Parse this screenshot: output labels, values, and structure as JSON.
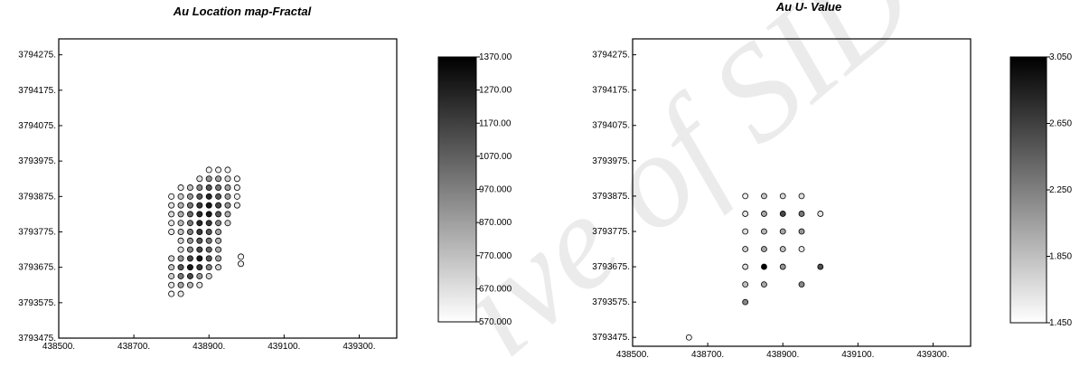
{
  "watermark_text": "ive of SID",
  "chart_data": [
    {
      "type": "scatter",
      "title": "Au Location map-Fractal",
      "xlabel": "",
      "ylabel": "",
      "xlim": [
        438500,
        439400
      ],
      "ylim": [
        3793475,
        3794320
      ],
      "x_ticks": [
        "438500.",
        "438700.",
        "438900.",
        "439100.",
        "439300."
      ],
      "y_ticks": [
        "3793475.",
        "3793575.",
        "3793675.",
        "3793775.",
        "3793875.",
        "3793975.",
        "3794075.",
        "3794175.",
        "3794275."
      ],
      "colorbar": {
        "min": 570,
        "max": 1370,
        "labels": [
          "1370.00",
          "1270.00",
          "1170.00",
          "1070.00",
          "970.000",
          "870.000",
          "770.000",
          "670.000",
          "570.000"
        ]
      },
      "grid": false,
      "points": [
        {
          "x": 438900,
          "y": 3793950,
          "v": 600
        },
        {
          "x": 438925,
          "y": 3793950,
          "v": 620
        },
        {
          "x": 438950,
          "y": 3793950,
          "v": 600
        },
        {
          "x": 438875,
          "y": 3793925,
          "v": 650
        },
        {
          "x": 438900,
          "y": 3793925,
          "v": 900
        },
        {
          "x": 438925,
          "y": 3793925,
          "v": 850
        },
        {
          "x": 438950,
          "y": 3793925,
          "v": 700
        },
        {
          "x": 438975,
          "y": 3793925,
          "v": 600
        },
        {
          "x": 438825,
          "y": 3793900,
          "v": 620
        },
        {
          "x": 438850,
          "y": 3793900,
          "v": 760
        },
        {
          "x": 438875,
          "y": 3793900,
          "v": 940
        },
        {
          "x": 438900,
          "y": 3793900,
          "v": 1100
        },
        {
          "x": 438925,
          "y": 3793900,
          "v": 1000
        },
        {
          "x": 438950,
          "y": 3793900,
          "v": 850
        },
        {
          "x": 438975,
          "y": 3793900,
          "v": 620
        },
        {
          "x": 438800,
          "y": 3793875,
          "v": 600
        },
        {
          "x": 438825,
          "y": 3793875,
          "v": 730
        },
        {
          "x": 438850,
          "y": 3793875,
          "v": 900
        },
        {
          "x": 438875,
          "y": 3793875,
          "v": 1100
        },
        {
          "x": 438900,
          "y": 3793875,
          "v": 1250
        },
        {
          "x": 438925,
          "y": 3793875,
          "v": 1100
        },
        {
          "x": 438950,
          "y": 3793875,
          "v": 870
        },
        {
          "x": 438975,
          "y": 3793875,
          "v": 620
        },
        {
          "x": 438800,
          "y": 3793850,
          "v": 650
        },
        {
          "x": 438825,
          "y": 3793850,
          "v": 800
        },
        {
          "x": 438850,
          "y": 3793850,
          "v": 1000
        },
        {
          "x": 438875,
          "y": 3793850,
          "v": 1200
        },
        {
          "x": 438900,
          "y": 3793850,
          "v": 1300
        },
        {
          "x": 438925,
          "y": 3793850,
          "v": 1150
        },
        {
          "x": 438950,
          "y": 3793850,
          "v": 900
        },
        {
          "x": 438975,
          "y": 3793850,
          "v": 640
        },
        {
          "x": 438800,
          "y": 3793825,
          "v": 680
        },
        {
          "x": 438825,
          "y": 3793825,
          "v": 820
        },
        {
          "x": 438850,
          "y": 3793825,
          "v": 1050
        },
        {
          "x": 438875,
          "y": 3793825,
          "v": 1250
        },
        {
          "x": 438900,
          "y": 3793825,
          "v": 1300
        },
        {
          "x": 438925,
          "y": 3793825,
          "v": 1100
        },
        {
          "x": 438950,
          "y": 3793825,
          "v": 820
        },
        {
          "x": 438800,
          "y": 3793800,
          "v": 650
        },
        {
          "x": 438825,
          "y": 3793800,
          "v": 790
        },
        {
          "x": 438850,
          "y": 3793800,
          "v": 1000
        },
        {
          "x": 438875,
          "y": 3793800,
          "v": 1250
        },
        {
          "x": 438900,
          "y": 3793800,
          "v": 1200
        },
        {
          "x": 438925,
          "y": 3793800,
          "v": 950
        },
        {
          "x": 438950,
          "y": 3793800,
          "v": 720
        },
        {
          "x": 438800,
          "y": 3793775,
          "v": 630
        },
        {
          "x": 438825,
          "y": 3793775,
          "v": 760
        },
        {
          "x": 438850,
          "y": 3793775,
          "v": 980
        },
        {
          "x": 438875,
          "y": 3793775,
          "v": 1200
        },
        {
          "x": 438900,
          "y": 3793775,
          "v": 1100
        },
        {
          "x": 438925,
          "y": 3793775,
          "v": 850
        },
        {
          "x": 438825,
          "y": 3793750,
          "v": 700
        },
        {
          "x": 438850,
          "y": 3793750,
          "v": 900
        },
        {
          "x": 438875,
          "y": 3793750,
          "v": 1100
        },
        {
          "x": 438900,
          "y": 3793750,
          "v": 1000
        },
        {
          "x": 438925,
          "y": 3793750,
          "v": 800
        },
        {
          "x": 438825,
          "y": 3793725,
          "v": 680
        },
        {
          "x": 438850,
          "y": 3793725,
          "v": 950
        },
        {
          "x": 438875,
          "y": 3793725,
          "v": 1150
        },
        {
          "x": 438900,
          "y": 3793725,
          "v": 1050
        },
        {
          "x": 438925,
          "y": 3793725,
          "v": 820
        },
        {
          "x": 438800,
          "y": 3793700,
          "v": 700
        },
        {
          "x": 438825,
          "y": 3793700,
          "v": 900
        },
        {
          "x": 438850,
          "y": 3793700,
          "v": 1150
        },
        {
          "x": 438875,
          "y": 3793700,
          "v": 1300
        },
        {
          "x": 438900,
          "y": 3793700,
          "v": 1100
        },
        {
          "x": 438925,
          "y": 3793700,
          "v": 850
        },
        {
          "x": 438800,
          "y": 3793675,
          "v": 750
        },
        {
          "x": 438825,
          "y": 3793675,
          "v": 1100
        },
        {
          "x": 438850,
          "y": 3793675,
          "v": 1300
        },
        {
          "x": 438875,
          "y": 3793675,
          "v": 1200
        },
        {
          "x": 438900,
          "y": 3793675,
          "v": 950
        },
        {
          "x": 438925,
          "y": 3793675,
          "v": 700
        },
        {
          "x": 438800,
          "y": 3793650,
          "v": 720
        },
        {
          "x": 438825,
          "y": 3793650,
          "v": 1000
        },
        {
          "x": 438850,
          "y": 3793650,
          "v": 1150
        },
        {
          "x": 438875,
          "y": 3793650,
          "v": 900
        },
        {
          "x": 438900,
          "y": 3793650,
          "v": 700
        },
        {
          "x": 438800,
          "y": 3793625,
          "v": 650
        },
        {
          "x": 438825,
          "y": 3793625,
          "v": 850
        },
        {
          "x": 438850,
          "y": 3793625,
          "v": 800
        },
        {
          "x": 438875,
          "y": 3793625,
          "v": 650
        },
        {
          "x": 438800,
          "y": 3793600,
          "v": 600
        },
        {
          "x": 438825,
          "y": 3793600,
          "v": 640
        },
        {
          "x": 438985,
          "y": 3793705,
          "v": 600
        },
        {
          "x": 438985,
          "y": 3793685,
          "v": 620
        }
      ]
    },
    {
      "type": "scatter",
      "title": "Au U- Value",
      "xlabel": "",
      "ylabel": "",
      "xlim": [
        438500,
        439400
      ],
      "ylim": [
        3793450,
        3794320
      ],
      "x_ticks": [
        "438500.",
        "438700.",
        "438900.",
        "439100.",
        "439300."
      ],
      "y_ticks": [
        "3793475.",
        "3793575.",
        "3793675.",
        "3793775.",
        "3793875.",
        "3793975.",
        "3794075.",
        "3794175.",
        "3794275."
      ],
      "colorbar": {
        "min": 1.45,
        "max": 3.05,
        "labels": [
          "3.050",
          "2.650",
          "2.250",
          "1.850",
          "1.450"
        ]
      },
      "grid": false,
      "points": [
        {
          "x": 438800,
          "y": 3793875,
          "v": 1.55
        },
        {
          "x": 438850,
          "y": 3793875,
          "v": 1.8
        },
        {
          "x": 438900,
          "y": 3793875,
          "v": 1.7
        },
        {
          "x": 438950,
          "y": 3793875,
          "v": 1.65
        },
        {
          "x": 438800,
          "y": 3793825,
          "v": 1.6
        },
        {
          "x": 438850,
          "y": 3793825,
          "v": 2.0
        },
        {
          "x": 438900,
          "y": 3793825,
          "v": 2.6
        },
        {
          "x": 438950,
          "y": 3793825,
          "v": 2.3
        },
        {
          "x": 439000,
          "y": 3793825,
          "v": 1.6
        },
        {
          "x": 438800,
          "y": 3793775,
          "v": 1.65
        },
        {
          "x": 438850,
          "y": 3793775,
          "v": 1.9
        },
        {
          "x": 438900,
          "y": 3793775,
          "v": 2.0
        },
        {
          "x": 438950,
          "y": 3793775,
          "v": 2.1
        },
        {
          "x": 438800,
          "y": 3793725,
          "v": 1.75
        },
        {
          "x": 438850,
          "y": 3793725,
          "v": 2.0
        },
        {
          "x": 438900,
          "y": 3793725,
          "v": 1.85
        },
        {
          "x": 438950,
          "y": 3793725,
          "v": 1.6
        },
        {
          "x": 438800,
          "y": 3793675,
          "v": 1.65
        },
        {
          "x": 438850,
          "y": 3793675,
          "v": 3.05
        },
        {
          "x": 438900,
          "y": 3793675,
          "v": 2.1
        },
        {
          "x": 439000,
          "y": 3793675,
          "v": 2.55
        },
        {
          "x": 438800,
          "y": 3793625,
          "v": 1.85
        },
        {
          "x": 438850,
          "y": 3793625,
          "v": 2.0
        },
        {
          "x": 438950,
          "y": 3793625,
          "v": 2.2
        },
        {
          "x": 438800,
          "y": 3793575,
          "v": 2.2
        },
        {
          "x": 438650,
          "y": 3793475,
          "v": 1.5
        }
      ]
    }
  ]
}
